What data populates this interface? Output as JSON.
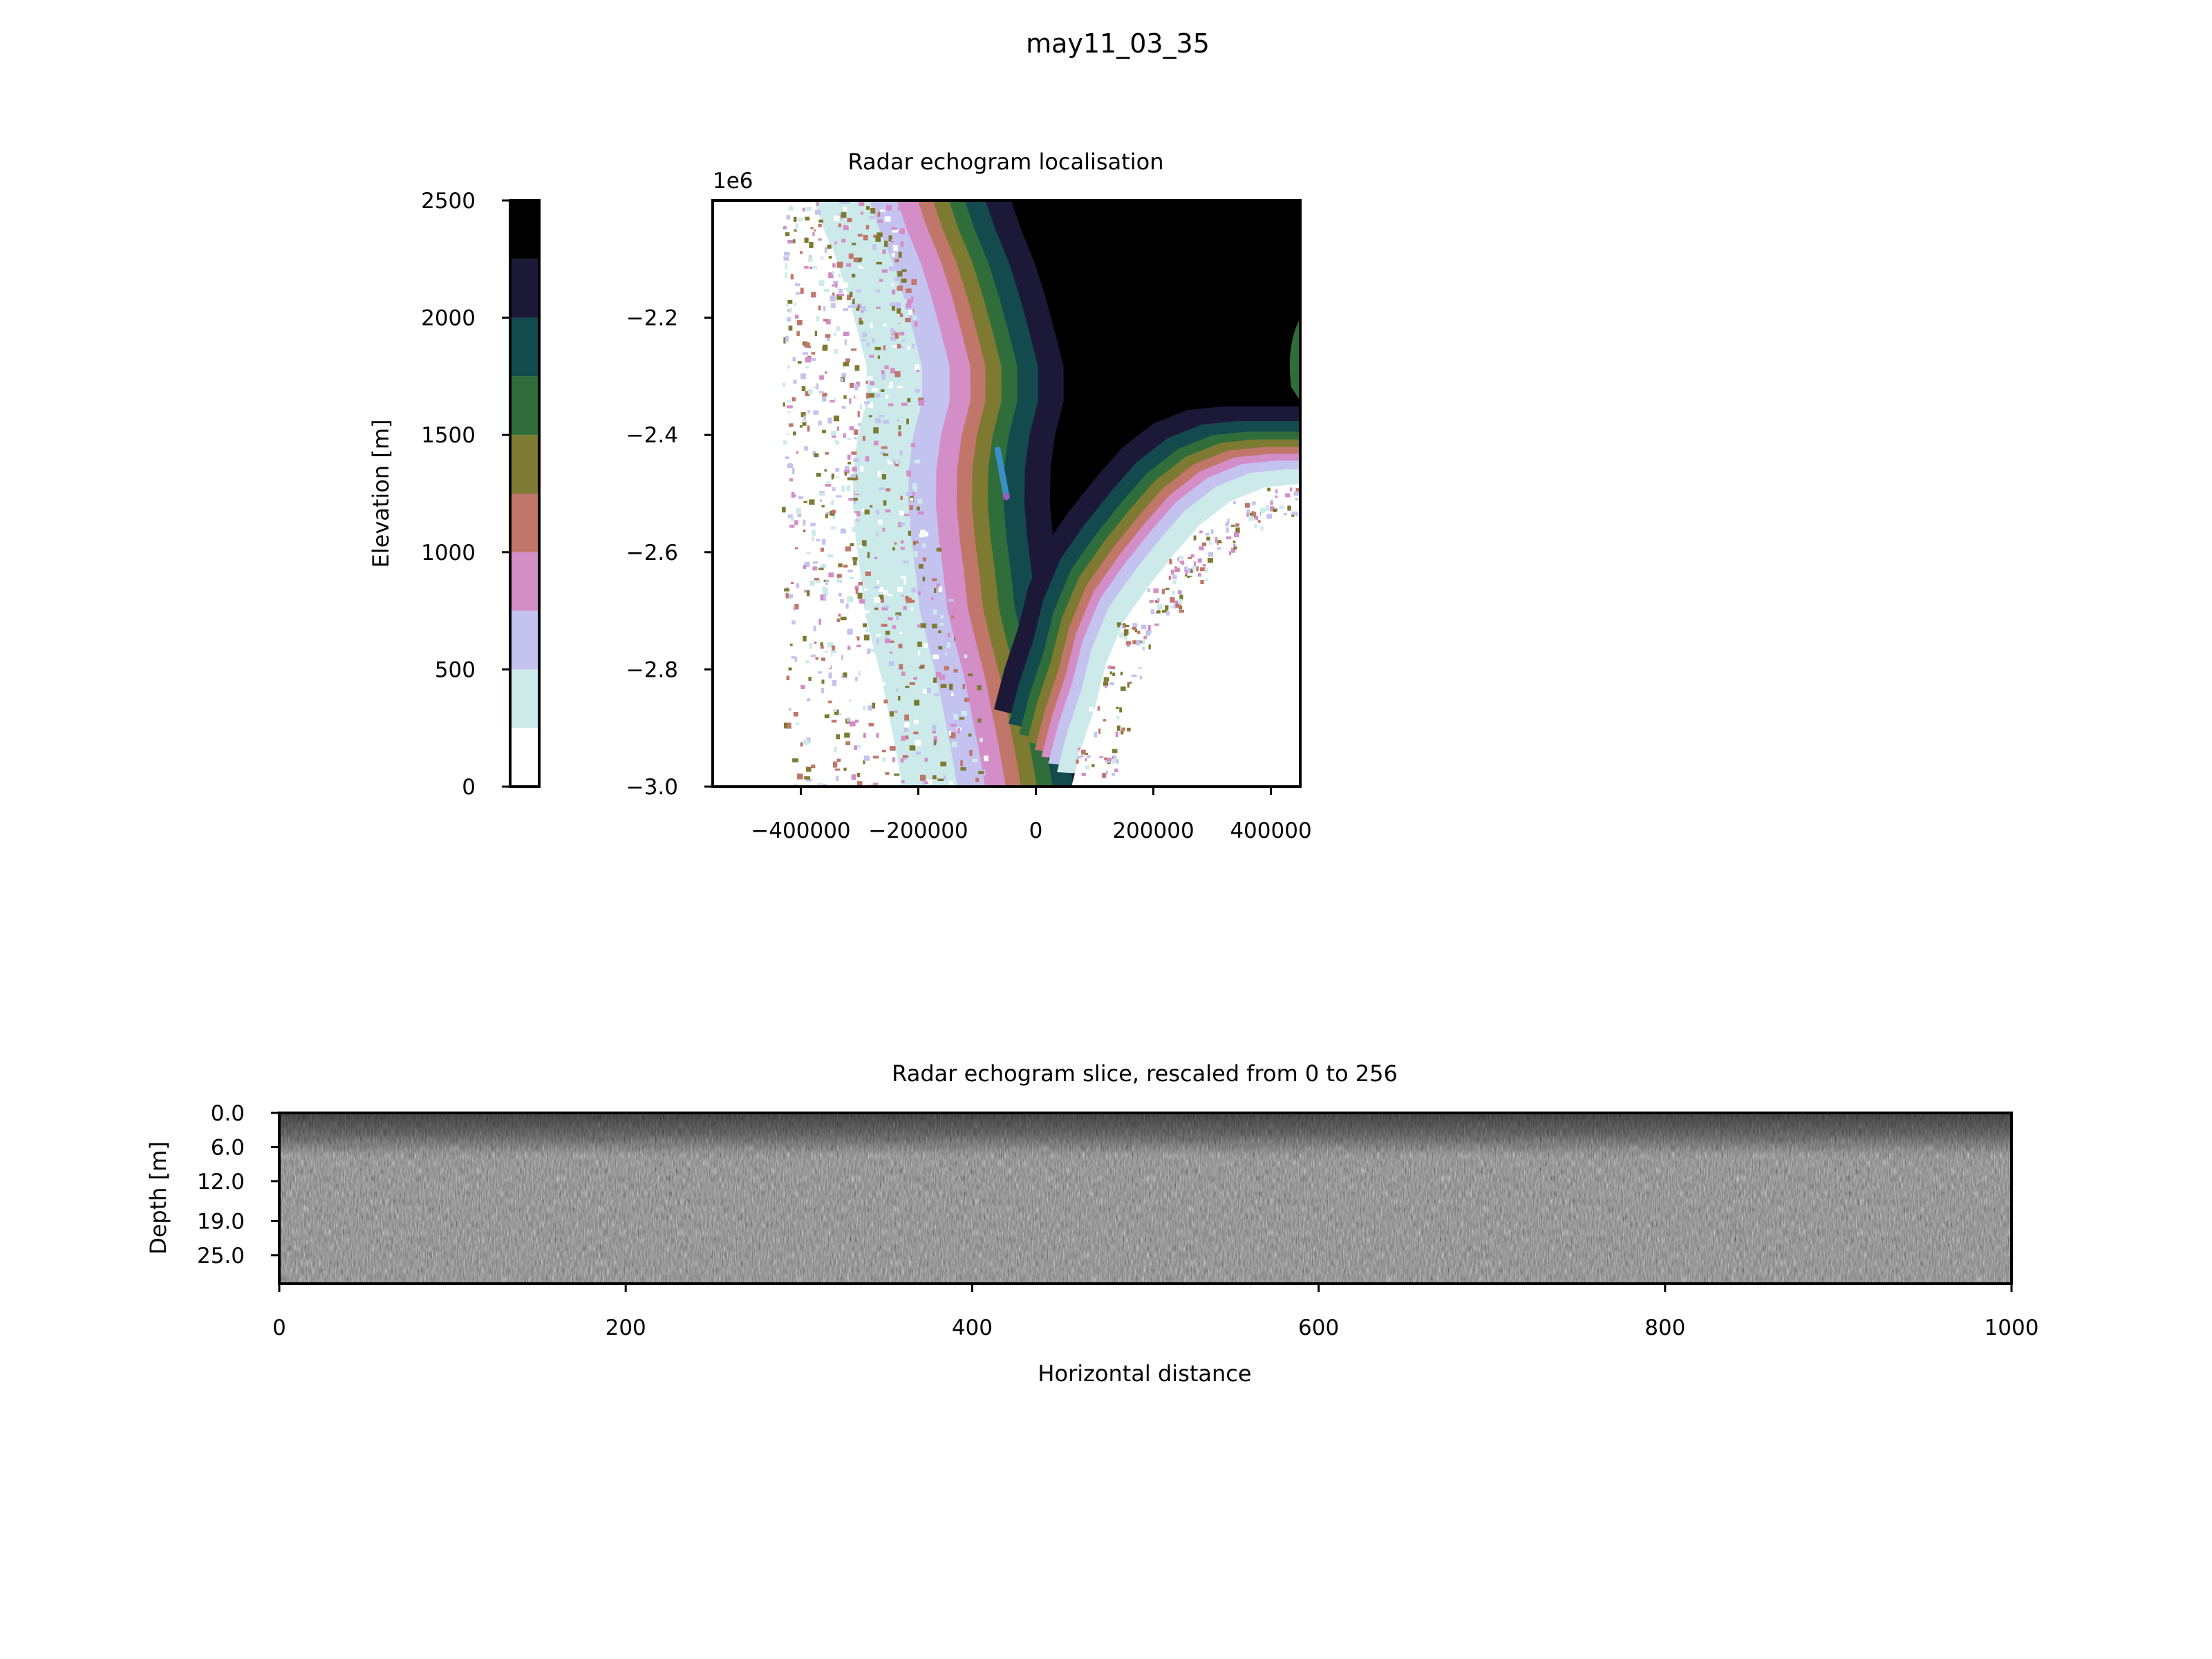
{
  "figure": {
    "suptitle": "may11_03_35"
  },
  "chart_data": [
    {
      "type": "colorbar",
      "label": "Elevation [m]",
      "range": [
        0,
        2500
      ],
      "ticks": [
        0,
        500,
        1000,
        1500,
        2000,
        2500
      ],
      "bins": [
        {
          "from": 0,
          "to": 250,
          "color": "#ffffff"
        },
        {
          "from": 250,
          "to": 500,
          "color": "#cdeaea"
        },
        {
          "from": 500,
          "to": 750,
          "color": "#c4c3ef"
        },
        {
          "from": 750,
          "to": 1000,
          "color": "#d38ec8"
        },
        {
          "from": 1000,
          "to": 1250,
          "color": "#c1766a"
        },
        {
          "from": 1250,
          "to": 1500,
          "color": "#7e7a31"
        },
        {
          "from": 1500,
          "to": 1750,
          "color": "#2f6e3a"
        },
        {
          "from": 1750,
          "to": 2000,
          "color": "#134a4e"
        },
        {
          "from": 2000,
          "to": 2250,
          "color": "#1c1938"
        },
        {
          "from": 2250,
          "to": 2500,
          "color": "#000000"
        }
      ]
    },
    {
      "type": "heatmap",
      "title": "Radar echogram localisation",
      "offset_text": "1e6",
      "xlim": [
        -550000,
        450000
      ],
      "ylim": [
        -3.0,
        -2.0
      ],
      "xticks": [
        -400000,
        -200000,
        0,
        200000,
        400000
      ],
      "xtick_labels": [
        "−400000",
        "−200000",
        "0",
        "200000",
        "400000"
      ],
      "yticks": [
        -2.2,
        -2.4,
        -2.6,
        -2.8,
        -3.0
      ],
      "ytick_labels": [
        "−2.2",
        "−2.4",
        "−2.6",
        "−2.8",
        "−3.0"
      ],
      "track": {
        "points": [
          [
            -65000,
            -2.425
          ],
          [
            -50000,
            -2.505
          ]
        ],
        "color": "#3a8fc4",
        "end_color": "#9a5cc0"
      }
    },
    {
      "type": "heatmap",
      "title": "Radar echogram slice, rescaled from 0 to 256",
      "xlabel": "Horizontal distance",
      "ylabel": "Depth [m]",
      "xlim": [
        0,
        1000
      ],
      "xticks": [
        0,
        200,
        400,
        600,
        800,
        1000
      ],
      "xtick_labels": [
        "0",
        "200",
        "400",
        "600",
        "800",
        "1000"
      ],
      "yticks": [
        0.0,
        6.0,
        12.0,
        19.0,
        25.0
      ],
      "ytick_labels": [
        "0.0",
        "6.0",
        "12.0",
        "19.0",
        "25.0"
      ],
      "ylim": [
        30.0,
        0.0
      ],
      "value_range": [
        0,
        256
      ],
      "colormap": "gray"
    }
  ]
}
